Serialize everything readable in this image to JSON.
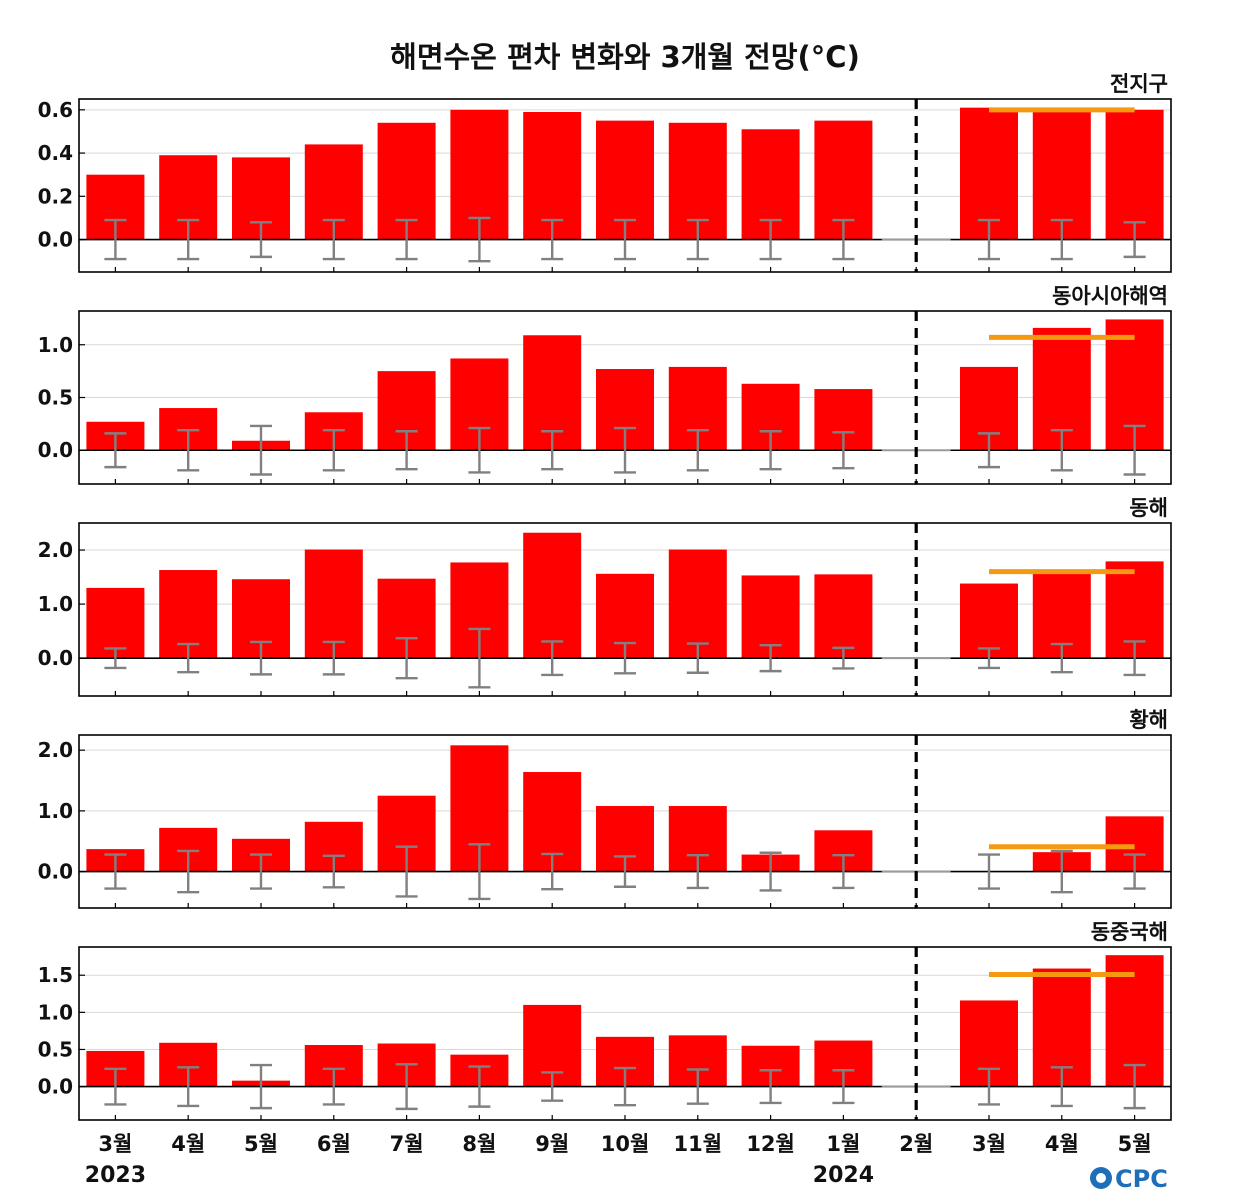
{
  "title": "해면수온 편차 변화와 3개월 전망(°C)",
  "logo": "CPC",
  "colors": {
    "bar": "#ff0000",
    "error_bar": "#808080",
    "forecast_line": "#f59a10",
    "zero_line": "#000000",
    "grid": "#d9d9d9",
    "divider": "#000000"
  },
  "x_labels": [
    "3월",
    "4월",
    "5월",
    "6월",
    "7월",
    "8월",
    "9월",
    "10월",
    "11월",
    "12월",
    "1월",
    "2월",
    "3월",
    "4월",
    "5월"
  ],
  "year_labels": [
    {
      "text": "2023",
      "index": 0
    },
    {
      "text": "2024",
      "index": 10
    }
  ],
  "divider_index": 11,
  "chart_data": [
    {
      "type": "bar",
      "name": "전지구",
      "categories": [
        "3월",
        "4월",
        "5월",
        "6월",
        "7월",
        "8월",
        "9월",
        "10월",
        "11월",
        "12월",
        "1월",
        "2월",
        "3월",
        "4월",
        "5월"
      ],
      "values": [
        0.3,
        0.39,
        0.38,
        0.44,
        0.54,
        0.6,
        0.59,
        0.55,
        0.54,
        0.51,
        0.55,
        null,
        0.61,
        0.61,
        0.6
      ],
      "error_range": [
        0.09,
        0.09,
        0.08,
        0.09,
        0.09,
        0.1,
        0.09,
        0.09,
        0.09,
        0.09,
        0.09,
        null,
        0.09,
        0.09,
        0.08
      ],
      "forecast_line": {
        "from_index": 12,
        "to_index": 14,
        "value": 0.6
      },
      "ylim": [
        -0.15,
        0.65
      ],
      "yticks": [
        0.0,
        0.2,
        0.4,
        0.6
      ],
      "ytick_labels": [
        "0.0",
        "0.2",
        "0.4",
        "0.6"
      ],
      "grid": true
    },
    {
      "type": "bar",
      "name": "동아시아해역",
      "categories": [
        "3월",
        "4월",
        "5월",
        "6월",
        "7월",
        "8월",
        "9월",
        "10월",
        "11월",
        "12월",
        "1월",
        "2월",
        "3월",
        "4월",
        "5월"
      ],
      "values": [
        0.27,
        0.4,
        0.09,
        0.36,
        0.75,
        0.87,
        1.09,
        0.77,
        0.79,
        0.63,
        0.58,
        null,
        0.79,
        1.16,
        1.24
      ],
      "error_range": [
        0.16,
        0.19,
        0.23,
        0.19,
        0.18,
        0.21,
        0.18,
        0.21,
        0.19,
        0.18,
        0.17,
        null,
        0.16,
        0.19,
        0.23
      ],
      "forecast_line": {
        "from_index": 12,
        "to_index": 14,
        "value": 1.07
      },
      "ylim": [
        -0.32,
        1.32
      ],
      "yticks": [
        0.0,
        0.5,
        1.0
      ],
      "ytick_labels": [
        "0.0",
        "0.5",
        "1.0"
      ],
      "grid": true
    },
    {
      "type": "bar",
      "name": "동해",
      "categories": [
        "3월",
        "4월",
        "5월",
        "6월",
        "7월",
        "8월",
        "9월",
        "10월",
        "11월",
        "12월",
        "1월",
        "2월",
        "3월",
        "4월",
        "5월"
      ],
      "values": [
        1.3,
        1.63,
        1.46,
        2.01,
        1.47,
        1.77,
        2.32,
        1.56,
        2.01,
        1.53,
        1.55,
        null,
        1.38,
        1.6,
        1.79
      ],
      "error_range": [
        0.18,
        0.26,
        0.3,
        0.3,
        0.37,
        0.54,
        0.31,
        0.28,
        0.27,
        0.24,
        0.19,
        null,
        0.18,
        0.26,
        0.31
      ],
      "forecast_line": {
        "from_index": 12,
        "to_index": 14,
        "value": 1.6
      },
      "ylim": [
        -0.7,
        2.5
      ],
      "yticks": [
        0.0,
        1.0,
        2.0
      ],
      "ytick_labels": [
        "0.0",
        "1.0",
        "2.0"
      ],
      "grid": true
    },
    {
      "type": "bar",
      "name": "황해",
      "categories": [
        "3월",
        "4월",
        "5월",
        "6월",
        "7월",
        "8월",
        "9월",
        "10월",
        "11월",
        "12월",
        "1월",
        "2월",
        "3월",
        "4월",
        "5월"
      ],
      "values": [
        0.37,
        0.72,
        0.54,
        0.82,
        1.25,
        2.08,
        1.64,
        1.08,
        1.08,
        0.28,
        0.68,
        null,
        0.0,
        0.32,
        0.91
      ],
      "error_range": [
        0.28,
        0.34,
        0.28,
        0.26,
        0.41,
        0.45,
        0.29,
        0.25,
        0.27,
        0.31,
        0.27,
        null,
        0.28,
        0.34,
        0.28
      ],
      "forecast_line": {
        "from_index": 12,
        "to_index": 14,
        "value": 0.41
      },
      "ylim": [
        -0.6,
        2.25
      ],
      "yticks": [
        0.0,
        1.0,
        2.0
      ],
      "ytick_labels": [
        "0.0",
        "1.0",
        "2.0"
      ],
      "grid": true
    },
    {
      "type": "bar",
      "name": "동중국해",
      "categories": [
        "3월",
        "4월",
        "5월",
        "6월",
        "7월",
        "8월",
        "9월",
        "10월",
        "11월",
        "12월",
        "1월",
        "2월",
        "3월",
        "4월",
        "5월"
      ],
      "values": [
        0.48,
        0.59,
        0.08,
        0.56,
        0.58,
        0.43,
        1.1,
        0.67,
        0.69,
        0.55,
        0.62,
        null,
        1.16,
        1.59,
        1.77
      ],
      "error_range": [
        0.24,
        0.26,
        0.29,
        0.24,
        0.3,
        0.27,
        0.19,
        0.25,
        0.23,
        0.22,
        0.22,
        null,
        0.24,
        0.26,
        0.29
      ],
      "forecast_line": {
        "from_index": 12,
        "to_index": 14,
        "value": 1.51
      },
      "ylim": [
        -0.45,
        1.88
      ],
      "yticks": [
        0.0,
        0.5,
        1.0,
        1.5
      ],
      "ytick_labels": [
        "0.0",
        "0.5",
        "1.0",
        "1.5"
      ],
      "grid": true
    }
  ]
}
